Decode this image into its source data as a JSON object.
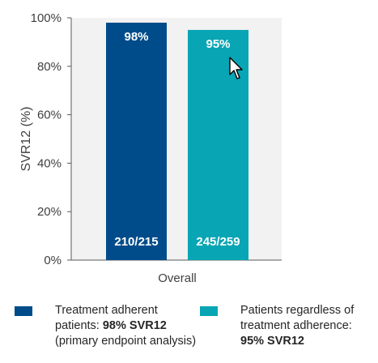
{
  "chart_data": {
    "type": "bar",
    "categories": [
      "Overall"
    ],
    "series": [
      {
        "value": 98,
        "value_label": "98%",
        "count_label": "210/215",
        "color": "#004c8a"
      },
      {
        "value": 95,
        "value_label": "95%",
        "count_label": "245/259",
        "color": "#08a5b4"
      }
    ],
    "ylabel": "SVR12 (%)",
    "ylim": [
      0,
      100
    ],
    "yticks": [
      0,
      20,
      40,
      60,
      80,
      100
    ],
    "ytick_labels": [
      "0%",
      "20%",
      "40%",
      "60%",
      "80%",
      "100%"
    ],
    "plot_background": "#f2f2f2"
  },
  "legend": {
    "items": [
      {
        "color": "#004c8a",
        "line1": "Treatment adherent",
        "line2_prefix": "patients: ",
        "line2_bold": "98% SVR12",
        "line3": "(primary endpoint analysis)"
      },
      {
        "color": "#08a5b4",
        "line1": "Patients regardless of",
        "line2": "treatment adherence:",
        "line3_bold": "95% SVR12"
      }
    ]
  },
  "cursor_icon": "mouse-pointer-icon"
}
